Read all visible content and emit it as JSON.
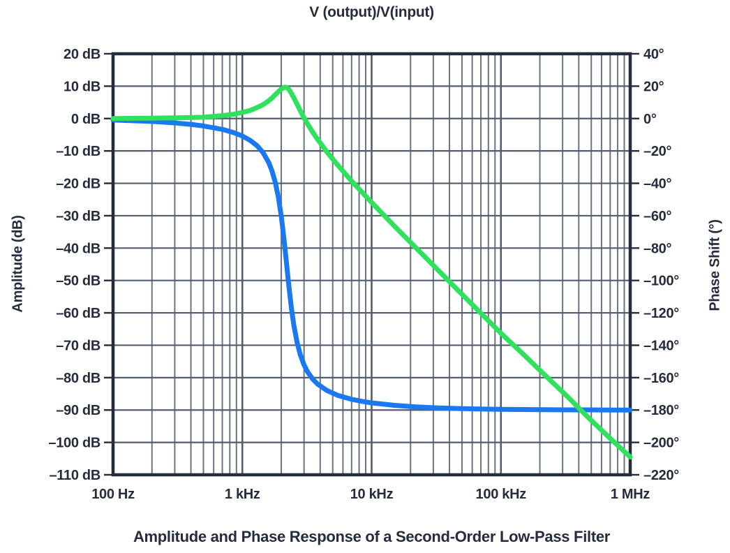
{
  "title": "V (output)/V(input)",
  "caption": "Amplitude and Phase Response of a Second-Order Low-Pass Filter",
  "colors": {
    "background": "#ffffff",
    "text": "#252c3d",
    "frame": "#252c3d",
    "grid_minor": "#6b7383",
    "grid_major": "#535d6f",
    "amplitude_curve": "#2fe15d",
    "phase_curve": "#1a79f0"
  },
  "chart_data": {
    "type": "line",
    "title": "V (output)/V(input)",
    "caption": "Amplitude and Phase Response of a Second-Order Low-Pass Filter",
    "grid": true,
    "legend": "none",
    "x_axis": {
      "scale": "log",
      "min": 100,
      "max": 1000000,
      "unit": "Hz",
      "ticks": [
        {
          "value": 100,
          "label": "100 Hz"
        },
        {
          "value": 1000,
          "label": "1 kHz"
        },
        {
          "value": 10000,
          "label": "10 kHz"
        },
        {
          "value": 100000,
          "label": "100 kHz"
        },
        {
          "value": 1000000,
          "label": "1 MHz"
        }
      ]
    },
    "y_left": {
      "label": "Amplitude (dB)",
      "unit": "dB",
      "min": -110,
      "max": 20,
      "step": 10
    },
    "y_right": {
      "label": "Phase Shift (°)",
      "unit": "°",
      "min": -220,
      "max": 40,
      "step": 20
    },
    "series": [
      {
        "name": "Phase Shift",
        "axis": "right",
        "color": "#1a79f0",
        "points": [
          [
            100,
            -0.9
          ],
          [
            200,
            -1.8
          ],
          [
            300,
            -2.7
          ],
          [
            400,
            -3.6
          ],
          [
            500,
            -4.6
          ],
          [
            700,
            -6.7
          ],
          [
            850,
            -8.6
          ],
          [
            1000,
            -10.8
          ],
          [
            1150,
            -13.5
          ],
          [
            1300,
            -16.8
          ],
          [
            1450,
            -21.2
          ],
          [
            1600,
            -27.2
          ],
          [
            1700,
            -32.6
          ],
          [
            1800,
            -39.5
          ],
          [
            1900,
            -48.6
          ],
          [
            2000,
            -60.2
          ],
          [
            2100,
            -74.4
          ],
          [
            2150,
            -82.1
          ],
          [
            2200,
            -90.0
          ],
          [
            2250,
            -97.7
          ],
          [
            2300,
            -104.9
          ],
          [
            2400,
            -117.6
          ],
          [
            2500,
            -127.6
          ],
          [
            2650,
            -138.3
          ],
          [
            2800,
            -145.6
          ],
          [
            3000,
            -152.1
          ],
          [
            3200,
            -156.5
          ],
          [
            3500,
            -160.9
          ],
          [
            3800,
            -163.8
          ],
          [
            4500,
            -167.9
          ],
          [
            5500,
            -171.0
          ],
          [
            7000,
            -173.4
          ],
          [
            8500,
            -174.7
          ],
          [
            10000,
            -175.6
          ],
          [
            15000,
            -177.1
          ],
          [
            22000,
            -178.1
          ],
          [
            33000,
            -178.7
          ],
          [
            47000,
            -179.1
          ],
          [
            68000,
            -179.4
          ],
          [
            100000,
            -179.6
          ],
          [
            150000,
            -179.7
          ],
          [
            220000,
            -179.8
          ],
          [
            330000,
            -179.9
          ],
          [
            470000,
            -179.9
          ],
          [
            680000,
            -180.0
          ],
          [
            1000000,
            -180.0
          ]
        ]
      },
      {
        "name": "Amplitude",
        "axis": "left",
        "color": "#2fe15d",
        "points": [
          [
            100,
            0.0
          ],
          [
            200,
            0.1
          ],
          [
            300,
            0.2
          ],
          [
            400,
            0.3
          ],
          [
            500,
            0.4
          ],
          [
            700,
            0.9
          ],
          [
            850,
            1.3
          ],
          [
            1000,
            1.9
          ],
          [
            1150,
            2.5
          ],
          [
            1300,
            3.4
          ],
          [
            1450,
            4.3
          ],
          [
            1600,
            5.5
          ],
          [
            1700,
            6.4
          ],
          [
            1800,
            7.4
          ],
          [
            1900,
            8.3
          ],
          [
            2000,
            9.1
          ],
          [
            2100,
            9.6
          ],
          [
            2150,
            9.7
          ],
          [
            2200,
            9.5
          ],
          [
            2250,
            9.3
          ],
          [
            2300,
            8.9
          ],
          [
            2400,
            7.7
          ],
          [
            2500,
            6.4
          ],
          [
            2650,
            4.4
          ],
          [
            2800,
            2.5
          ],
          [
            3000,
            0.2
          ],
          [
            3200,
            -1.7
          ],
          [
            3500,
            -4.2
          ],
          [
            3800,
            -6.3
          ],
          [
            4500,
            -10.3
          ],
          [
            5500,
            -14.5
          ],
          [
            7000,
            -19.3
          ],
          [
            8500,
            -22.9
          ],
          [
            10000,
            -25.9
          ],
          [
            15000,
            -33.2
          ],
          [
            22000,
            -39.9
          ],
          [
            33000,
            -47.0
          ],
          [
            47000,
            -53.2
          ],
          [
            68000,
            -59.6
          ],
          [
            100000,
            -66.3
          ],
          [
            150000,
            -72.9
          ],
          [
            220000,
            -79.3
          ],
          [
            330000,
            -86.0
          ],
          [
            470000,
            -92.2
          ],
          [
            680000,
            -98.3
          ],
          [
            1000000,
            -104.5
          ]
        ]
      }
    ]
  }
}
